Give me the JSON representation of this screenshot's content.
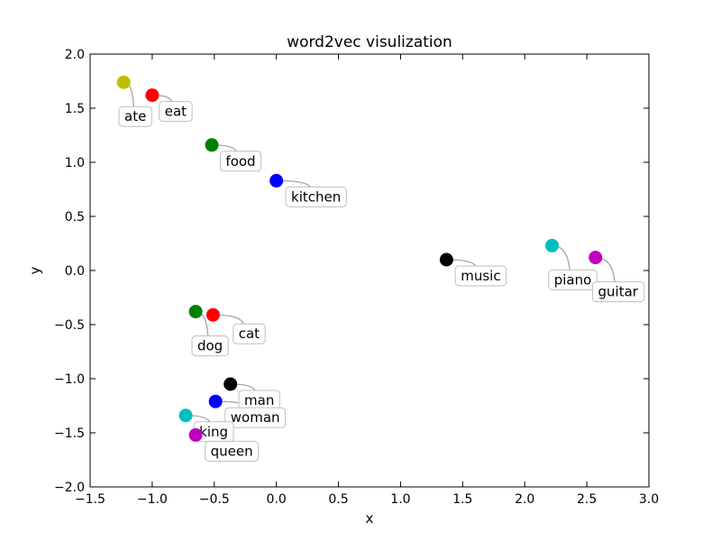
{
  "chart_data": {
    "type": "scatter",
    "title": "word2vec visulization",
    "xlabel": "x",
    "ylabel": "y",
    "xlim": [
      -1.5,
      3.0
    ],
    "ylim": [
      -2.0,
      2.0
    ],
    "xticks": [
      -1.5,
      -1.0,
      -0.5,
      0.0,
      0.5,
      1.0,
      1.5,
      2.0,
      2.5,
      3.0
    ],
    "xtick_labels": [
      "−1.5",
      "−1.0",
      "−0.5",
      "0.0",
      "0.5",
      "1.0",
      "1.5",
      "2.0",
      "2.5",
      "3.0"
    ],
    "yticks": [
      -2.0,
      -1.5,
      -1.0,
      -0.5,
      0.0,
      0.5,
      1.0,
      1.5,
      2.0
    ],
    "ytick_labels": [
      "−2.0",
      "−1.5",
      "−1.0",
      "−0.5",
      "0.0",
      "0.5",
      "1.0",
      "1.5",
      "2.0"
    ],
    "grid": false,
    "points": [
      {
        "label": "ate",
        "x": -1.23,
        "y": 1.74,
        "color": "#bfbf00"
      },
      {
        "label": "eat",
        "x": -1.0,
        "y": 1.62,
        "color": "#ff0000"
      },
      {
        "label": "food",
        "x": -0.52,
        "y": 1.16,
        "color": "#008000"
      },
      {
        "label": "kitchen",
        "x": 0.0,
        "y": 0.83,
        "color": "#0000ff"
      },
      {
        "label": "music",
        "x": 1.37,
        "y": 0.1,
        "color": "#000000"
      },
      {
        "label": "piano",
        "x": 2.22,
        "y": 0.23,
        "color": "#00bfbf"
      },
      {
        "label": "guitar",
        "x": 2.57,
        "y": 0.12,
        "color": "#bf00bf"
      },
      {
        "label": "dog",
        "x": -0.65,
        "y": -0.38,
        "color": "#008000"
      },
      {
        "label": "cat",
        "x": -0.51,
        "y": -0.41,
        "color": "#ff0000"
      },
      {
        "label": "man",
        "x": -0.37,
        "y": -1.05,
        "color": "#000000"
      },
      {
        "label": "woman",
        "x": -0.49,
        "y": -1.21,
        "color": "#0000ff"
      },
      {
        "label": "king",
        "x": -0.73,
        "y": -1.34,
        "color": "#00bfbf"
      },
      {
        "label": "queen",
        "x": -0.65,
        "y": -1.52,
        "color": "#bf00bf"
      }
    ]
  }
}
